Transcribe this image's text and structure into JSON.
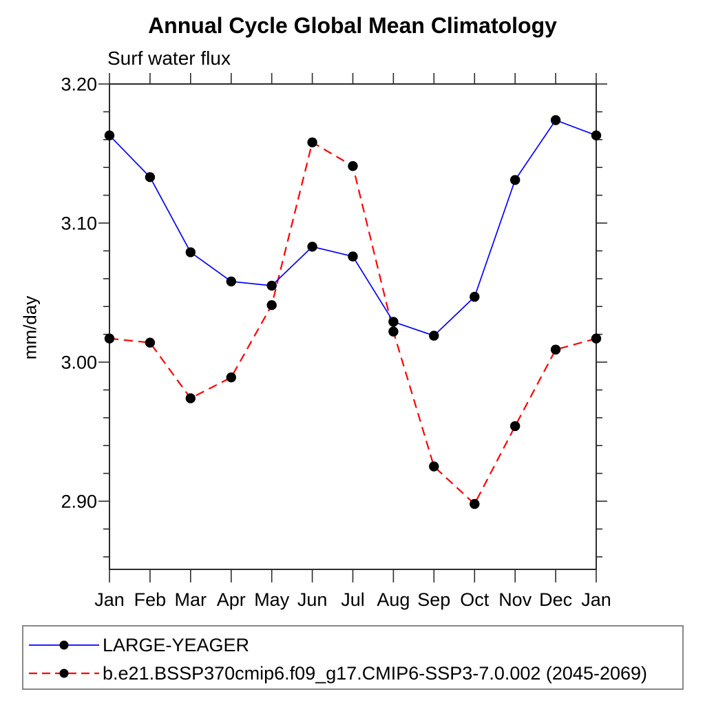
{
  "chart_data": {
    "type": "line",
    "title": "Annual Cycle Global Mean Climatology",
    "subtitle": "Surf water flux",
    "ylabel": "mm/day",
    "categories": [
      "Jan",
      "Feb",
      "Mar",
      "Apr",
      "May",
      "Jun",
      "Jul",
      "Aug",
      "Sep",
      "Oct",
      "Nov",
      "Dec",
      "Jan"
    ],
    "series": [
      {
        "name": "LARGE-YEAGER",
        "color": "#0000ff",
        "line_style": "solid",
        "marker": "filled-circle",
        "marker_color": "#000000",
        "values": [
          3.163,
          3.133,
          3.079,
          3.058,
          3.055,
          3.083,
          3.076,
          3.029,
          3.019,
          3.047,
          3.131,
          3.174,
          3.163
        ]
      },
      {
        "name": "b.e21.BSSP370cmip6.f09_g17.CMIP6-SSP3-7.0.002 (2045-2069)",
        "color": "#ff0000",
        "line_style": "dashed",
        "marker": "filled-circle",
        "marker_color": "#000000",
        "values": [
          3.017,
          3.014,
          2.974,
          2.989,
          3.041,
          3.158,
          3.141,
          3.022,
          2.925,
          2.898,
          2.954,
          3.009,
          3.017
        ]
      }
    ],
    "ylim": [
      2.85,
      3.2
    ],
    "yticks": [
      3.2,
      3.1,
      3.0,
      2.9
    ],
    "ytick_labels": [
      "3.20",
      "3.10",
      "3.00",
      "2.90"
    ],
    "y_minor_tick_step": 0.02,
    "grid": false,
    "legend_position": "bottom-left-box"
  },
  "colors": {
    "background": "#ffffff",
    "axis": "#2b2b2b",
    "text": "#000000",
    "legend_border": "#878787",
    "series_blue": "#0000ff",
    "series_red": "#ff0000",
    "marker": "#000000"
  }
}
